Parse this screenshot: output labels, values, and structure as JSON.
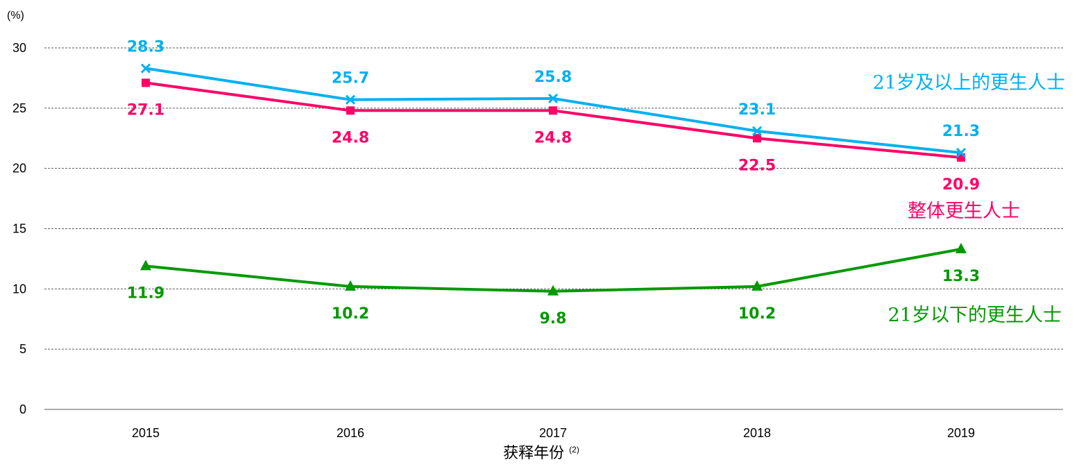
{
  "chart_data": {
    "type": "line",
    "title": "",
    "ylabel": "(%)",
    "xlabel": "获释年份",
    "xlabel_note": "(2)",
    "ylim": [
      0,
      30
    ],
    "yticks": [
      0,
      5,
      10,
      15,
      20,
      25,
      30
    ],
    "grid": "horizontal dashed",
    "categories": [
      "2015",
      "2016",
      "2017",
      "2018",
      "2019"
    ],
    "series": [
      {
        "id": "age21plus",
        "name": "21岁及以上的更生人士",
        "color": "#00B0F0",
        "marker": "x",
        "values": [
          28.3,
          25.7,
          25.8,
          23.1,
          21.3
        ],
        "labels": [
          "28.3",
          "25.7",
          "25.8",
          "23.1",
          "21.3"
        ]
      },
      {
        "id": "overall",
        "name": "整体更生人士",
        "color": "#FF0066",
        "marker": "square",
        "values": [
          27.1,
          24.8,
          24.8,
          22.5,
          20.9
        ],
        "labels": [
          "27.1",
          "24.8",
          "24.8",
          "22.5",
          "20.9"
        ]
      },
      {
        "id": "under21",
        "name": "21岁以下的更生人士",
        "color": "#009900",
        "marker": "triangle",
        "values": [
          11.9,
          10.2,
          9.8,
          10.2,
          13.3
        ],
        "labels": [
          "11.9",
          "10.2",
          "9.8",
          "10.2",
          "13.3"
        ]
      }
    ]
  }
}
